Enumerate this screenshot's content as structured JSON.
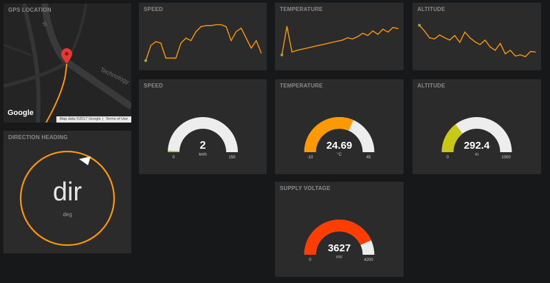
{
  "colors": {
    "background": "#17181a",
    "panel": "#2b2b2b",
    "line": "#ff9900",
    "point_start": "#8fb339",
    "gauge_track": "#ededed",
    "speed_fill": "#9acd32",
    "temperature_fill": "#ff9900",
    "altitude_fill": "#c8c816",
    "voltage_fill": "#ff3d00",
    "compass": "#ff9900"
  },
  "map": {
    "title": "GPS LOCATION",
    "logo": "Google",
    "street_labels": [
      "W",
      "Technology"
    ],
    "footer": [
      "Map data ©2017 Google",
      "Terms of Use"
    ]
  },
  "direction": {
    "title": "DIRECTION HEADING",
    "value": "dir",
    "unit": "deg"
  },
  "sparklines": [
    {
      "title": "SPEED",
      "chart_data": {
        "type": "line",
        "values": [
          0,
          30,
          38,
          35,
          5,
          5,
          5,
          35,
          45,
          40,
          58,
          68,
          70,
          70,
          72,
          72,
          68,
          40,
          58,
          65,
          45,
          25,
          40,
          15
        ],
        "ylim": [
          0,
          80
        ]
      }
    },
    {
      "title": "TEMPERATURE",
      "chart_data": {
        "type": "line",
        "values": [
          10,
          60,
          15,
          18,
          20,
          22,
          24,
          26,
          28,
          30,
          32,
          34,
          36,
          40,
          38,
          42,
          48,
          44,
          52,
          46,
          55,
          50,
          58,
          56
        ],
        "ylim": [
          0,
          70
        ]
      }
    },
    {
      "title": "ALTITUDE",
      "chart_data": {
        "type": "line",
        "values": [
          62,
          52,
          40,
          38,
          45,
          40,
          36,
          44,
          32,
          50,
          40,
          33,
          28,
          36,
          24,
          18,
          30,
          12,
          18,
          8,
          10,
          7,
          16,
          15
        ],
        "ylim": [
          0,
          70
        ]
      }
    }
  ],
  "gauges": [
    {
      "title": "SPEED",
      "value": "2",
      "unit": "kmh",
      "min": "0",
      "max": "150",
      "fraction": 0.013
    },
    {
      "title": "TEMPERATURE",
      "value": "24.69",
      "unit": "°C",
      "min": "-10",
      "max": "45",
      "fraction": 0.631
    },
    {
      "title": "ALTITUDE",
      "value": "292.4",
      "unit": "m",
      "min": "0",
      "max": "1000",
      "fraction": 0.292
    },
    {
      "title": "SUPPLY VOLTAGE",
      "value": "3627",
      "unit": "mV",
      "min": "0",
      "max": "4200",
      "fraction": 0.864
    }
  ]
}
